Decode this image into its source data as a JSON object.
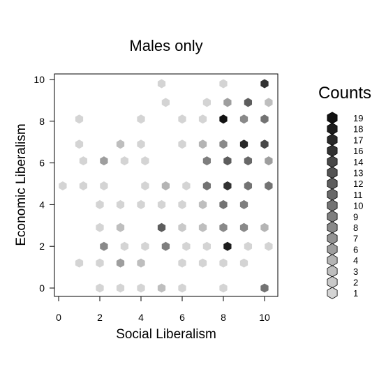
{
  "chart_data": {
    "type": "scatter",
    "subtype": "hexbin",
    "title": "Males only",
    "xlabel": "Social Liberalism",
    "ylabel": "Economic Liberalism",
    "xlim": [
      -0.2,
      10.5
    ],
    "ylim": [
      -0.4,
      10.2
    ],
    "xticks": [
      0,
      2,
      4,
      6,
      8,
      10
    ],
    "yticks": [
      0,
      2,
      4,
      6,
      8,
      10
    ],
    "grid": false,
    "legend": {
      "title": "Counts",
      "placement": "right",
      "levels": [
        19,
        18,
        17,
        16,
        14,
        13,
        12,
        11,
        10,
        9,
        8,
        7,
        6,
        4,
        3,
        2,
        1
      ]
    },
    "bins": [
      {
        "x": 5.0,
        "y": 9.8,
        "count": 1
      },
      {
        "x": 8.0,
        "y": 9.8,
        "count": 1
      },
      {
        "x": 10.0,
        "y": 9.8,
        "count": 16
      },
      {
        "x": 5.2,
        "y": 8.9,
        "count": 1
      },
      {
        "x": 7.2,
        "y": 8.9,
        "count": 1
      },
      {
        "x": 8.2,
        "y": 8.9,
        "count": 6
      },
      {
        "x": 9.2,
        "y": 8.9,
        "count": 12
      },
      {
        "x": 10.2,
        "y": 8.9,
        "count": 3
      },
      {
        "x": 1.0,
        "y": 8.1,
        "count": 1
      },
      {
        "x": 4.0,
        "y": 8.1,
        "count": 1
      },
      {
        "x": 6.0,
        "y": 8.1,
        "count": 1
      },
      {
        "x": 7.0,
        "y": 8.1,
        "count": 1
      },
      {
        "x": 8.0,
        "y": 8.1,
        "count": 19
      },
      {
        "x": 9.0,
        "y": 8.1,
        "count": 8
      },
      {
        "x": 10.0,
        "y": 8.1,
        "count": 10
      },
      {
        "x": 1.0,
        "y": 6.9,
        "count": 1
      },
      {
        "x": 3.0,
        "y": 6.9,
        "count": 3
      },
      {
        "x": 4.0,
        "y": 6.9,
        "count": 1
      },
      {
        "x": 6.0,
        "y": 6.9,
        "count": 1
      },
      {
        "x": 7.0,
        "y": 6.9,
        "count": 4
      },
      {
        "x": 8.0,
        "y": 6.9,
        "count": 8
      },
      {
        "x": 9.0,
        "y": 6.9,
        "count": 17
      },
      {
        "x": 10.0,
        "y": 6.9,
        "count": 14
      },
      {
        "x": 1.2,
        "y": 6.1,
        "count": 1
      },
      {
        "x": 2.2,
        "y": 6.1,
        "count": 6
      },
      {
        "x": 3.2,
        "y": 6.1,
        "count": 1
      },
      {
        "x": 4.2,
        "y": 6.1,
        "count": 1
      },
      {
        "x": 7.2,
        "y": 6.1,
        "count": 9
      },
      {
        "x": 8.2,
        "y": 6.1,
        "count": 12
      },
      {
        "x": 9.2,
        "y": 6.1,
        "count": 11
      },
      {
        "x": 10.2,
        "y": 6.1,
        "count": 6
      },
      {
        "x": 0.2,
        "y": 4.9,
        "count": 1
      },
      {
        "x": 1.2,
        "y": 4.9,
        "count": 1
      },
      {
        "x": 2.2,
        "y": 4.9,
        "count": 1
      },
      {
        "x": 4.2,
        "y": 4.9,
        "count": 1
      },
      {
        "x": 5.2,
        "y": 4.9,
        "count": 4
      },
      {
        "x": 6.2,
        "y": 4.9,
        "count": 1
      },
      {
        "x": 7.2,
        "y": 4.9,
        "count": 10
      },
      {
        "x": 8.2,
        "y": 4.9,
        "count": 16
      },
      {
        "x": 9.2,
        "y": 4.9,
        "count": 10
      },
      {
        "x": 10.2,
        "y": 4.9,
        "count": 10
      },
      {
        "x": 2.0,
        "y": 4.0,
        "count": 1
      },
      {
        "x": 3.0,
        "y": 4.0,
        "count": 1
      },
      {
        "x": 4.0,
        "y": 4.0,
        "count": 1
      },
      {
        "x": 5.0,
        "y": 4.0,
        "count": 1
      },
      {
        "x": 6.0,
        "y": 4.0,
        "count": 1
      },
      {
        "x": 7.0,
        "y": 4.0,
        "count": 3
      },
      {
        "x": 8.0,
        "y": 4.0,
        "count": 10
      },
      {
        "x": 9.0,
        "y": 4.0,
        "count": 9
      },
      {
        "x": 2.0,
        "y": 2.9,
        "count": 1
      },
      {
        "x": 3.0,
        "y": 2.9,
        "count": 3
      },
      {
        "x": 5.0,
        "y": 2.9,
        "count": 12
      },
      {
        "x": 6.0,
        "y": 2.9,
        "count": 2
      },
      {
        "x": 7.0,
        "y": 2.9,
        "count": 3
      },
      {
        "x": 8.0,
        "y": 2.9,
        "count": 8
      },
      {
        "x": 9.0,
        "y": 2.9,
        "count": 8
      },
      {
        "x": 10.0,
        "y": 2.9,
        "count": 4
      },
      {
        "x": 2.2,
        "y": 2.0,
        "count": 8
      },
      {
        "x": 3.2,
        "y": 2.0,
        "count": 1
      },
      {
        "x": 4.2,
        "y": 2.0,
        "count": 1
      },
      {
        "x": 5.2,
        "y": 2.0,
        "count": 9
      },
      {
        "x": 6.2,
        "y": 2.0,
        "count": 1
      },
      {
        "x": 7.2,
        "y": 2.0,
        "count": 1
      },
      {
        "x": 8.2,
        "y": 2.0,
        "count": 18
      },
      {
        "x": 9.2,
        "y": 2.0,
        "count": 1
      },
      {
        "x": 10.2,
        "y": 2.0,
        "count": 1
      },
      {
        "x": 1.0,
        "y": 1.2,
        "count": 1
      },
      {
        "x": 2.0,
        "y": 1.2,
        "count": 1
      },
      {
        "x": 3.0,
        "y": 1.2,
        "count": 6
      },
      {
        "x": 4.0,
        "y": 1.2,
        "count": 3
      },
      {
        "x": 6.0,
        "y": 1.2,
        "count": 1
      },
      {
        "x": 7.0,
        "y": 1.2,
        "count": 1
      },
      {
        "x": 8.0,
        "y": 1.2,
        "count": 1
      },
      {
        "x": 9.0,
        "y": 1.2,
        "count": 1
      },
      {
        "x": 2.0,
        "y": 0.0,
        "count": 1
      },
      {
        "x": 3.0,
        "y": 0.0,
        "count": 1
      },
      {
        "x": 4.0,
        "y": 0.0,
        "count": 1
      },
      {
        "x": 5.0,
        "y": 0.0,
        "count": 3
      },
      {
        "x": 6.0,
        "y": 0.0,
        "count": 1
      },
      {
        "x": 8.0,
        "y": 0.0,
        "count": 1
      },
      {
        "x": 10.0,
        "y": 0.0,
        "count": 10
      }
    ]
  }
}
